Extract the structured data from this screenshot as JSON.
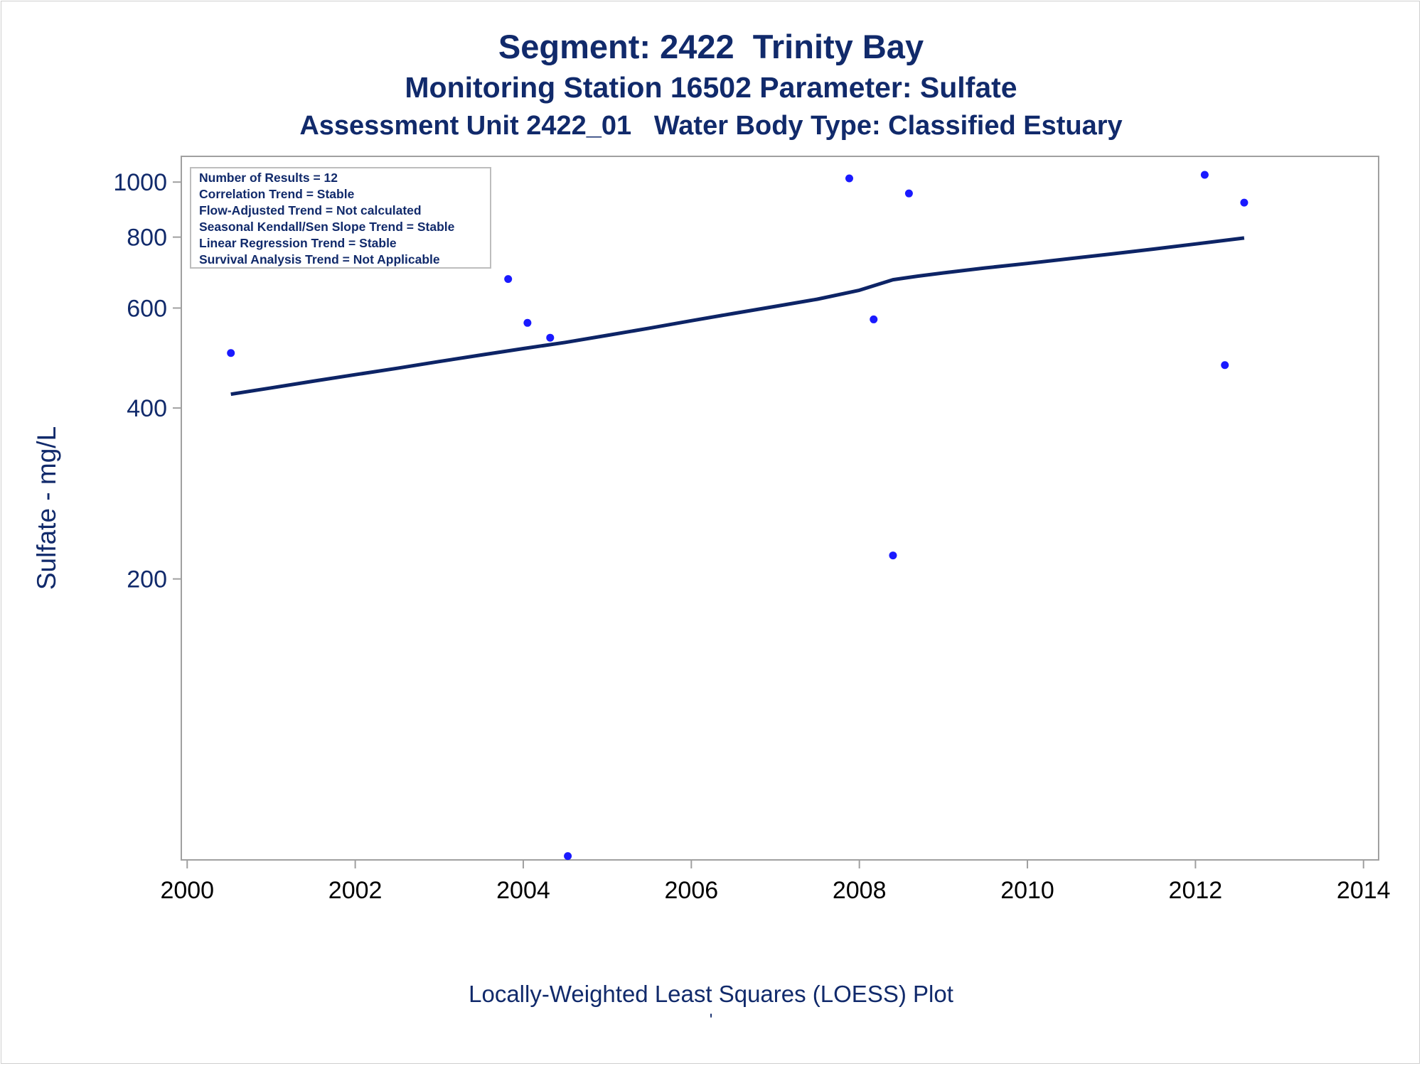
{
  "titles": {
    "line1": "Segment: 2422  Trinity Bay",
    "line2": "Monitoring Station 16502 Parameter: Sulfate",
    "line3": "Assessment Unit 2422_01   Water Body Type: Classified Estuary"
  },
  "footnote": "Locally-Weighted Least Squares (LOESS) Plot",
  "footnote_mark": "'",
  "legend_box": [
    "Number of Results = 12",
    "Correlation Trend = Stable",
    "Flow-Adjusted Trend = Not calculated",
    "Seasonal Kendall/Sen Slope Trend = Stable",
    "Linear Regression Trend = Stable",
    "Survival Analysis Trend = Not Applicable"
  ],
  "colors": {
    "text": "#112a6b",
    "points": "#1a1aff",
    "line": "#0d2466",
    "frame": "#a0a0a0",
    "x_ticks": "#000000"
  },
  "chart_data": {
    "type": "scatter",
    "ylabel": "Sulfate - mg/L",
    "xlabel": "",
    "x_scale": "linear",
    "y_scale": "log",
    "xlim": [
      1999.93,
      2014.18
    ],
    "ylim": [
      64,
      1110
    ],
    "x_ticks": [
      2000,
      2002,
      2004,
      2006,
      2008,
      2010,
      2012,
      2014
    ],
    "x_tick_labels": [
      "2000",
      "2002",
      "2004",
      "2006",
      "2008",
      "2010",
      "2012",
      "2014"
    ],
    "y_ticks": [
      200,
      400,
      600,
      800,
      1000
    ],
    "y_tick_labels": [
      "200",
      "400",
      "600",
      "800",
      "1000"
    ],
    "grid": false,
    "series": [
      {
        "kind": "points",
        "x": [
          2000.52,
          2003.82,
          2004.05,
          2004.32,
          2004.53,
          2007.88,
          2008.17,
          2008.4,
          2008.59,
          2012.11,
          2012.35,
          2012.58
        ],
        "y": [
          500,
          675,
          565,
          532,
          65,
          1015,
          573,
          220,
          955,
          1030,
          476,
          920
        ]
      },
      {
        "kind": "loess",
        "x": [
          2000.52,
          2001.0,
          2001.5,
          2002.0,
          2002.5,
          2003.0,
          2003.5,
          2004.0,
          2004.5,
          2005.0,
          2005.5,
          2006.0,
          2006.5,
          2007.0,
          2007.5,
          2008.0,
          2008.4,
          2008.7,
          2009.0,
          2009.5,
          2010.0,
          2010.5,
          2011.0,
          2011.5,
          2012.0,
          2012.58
        ],
        "y": [
          423,
          434,
          446,
          458,
          470,
          483,
          496,
          509,
          522,
          537,
          553,
          570,
          587,
          604,
          622,
          645,
          673,
          683,
          692,
          706,
          719,
          733,
          747,
          762,
          778,
          797
        ]
      }
    ]
  }
}
